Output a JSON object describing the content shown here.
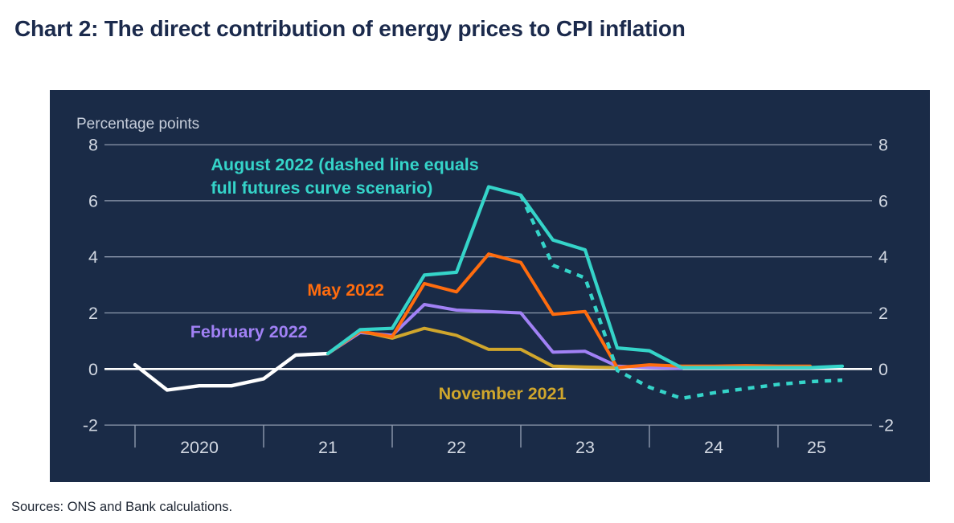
{
  "page": {
    "title": "Chart 2: The direct contribution of energy prices to CPI inflation",
    "sources": "Sources: ONS and Bank calculations."
  },
  "chart_data": {
    "type": "line",
    "title": "Chart 2: The direct contribution of energy prices to CPI inflation",
    "ylabel": "Percentage points",
    "xlabel": "",
    "ylim": [
      -2,
      8
    ],
    "yticks": [
      8,
      6,
      4,
      2,
      0,
      -2
    ],
    "y_axis_labels_on_both_sides": true,
    "grid": true,
    "legend_position": "inline-annotations",
    "year_ticks": [
      2020,
      2021,
      2022,
      2023,
      2024,
      2025
    ],
    "xtick_labels": [
      {
        "label": "2020",
        "year": 2020.5
      },
      {
        "label": "21",
        "year": 2021.5
      },
      {
        "label": "22",
        "year": 2022.5
      },
      {
        "label": "23",
        "year": 2023.5
      },
      {
        "label": "24",
        "year": 2024.5
      },
      {
        "label": "25",
        "year": 2025.3
      }
    ],
    "series": [
      {
        "id": "actual",
        "label": "",
        "color": "#ffffff",
        "style": "solid",
        "width": 4.4,
        "points": [
          [
            2020.0,
            0.15
          ],
          [
            2020.25,
            -0.75
          ],
          [
            2020.5,
            -0.6
          ],
          [
            2020.75,
            -0.6
          ],
          [
            2021.0,
            -0.35
          ],
          [
            2021.25,
            0.5
          ],
          [
            2021.5,
            0.55
          ]
        ]
      },
      {
        "id": "february-2022",
        "label": "February 2022",
        "color": "#a181f5",
        "style": "solid",
        "width": 4,
        "points": [
          [
            2021.5,
            0.55
          ],
          [
            2021.75,
            1.3
          ],
          [
            2022.0,
            1.2
          ],
          [
            2022.25,
            2.3
          ],
          [
            2022.5,
            2.1
          ],
          [
            2022.75,
            2.05
          ],
          [
            2023.0,
            2.0
          ],
          [
            2023.25,
            0.6
          ],
          [
            2023.5,
            0.63
          ],
          [
            2023.75,
            0.1
          ],
          [
            2024.0,
            0.05
          ],
          [
            2024.25,
            0.02
          ]
        ]
      },
      {
        "id": "november-2021",
        "label": "November 2021",
        "color": "#d0a62c",
        "style": "solid",
        "width": 4,
        "points": [
          [
            2021.5,
            0.55
          ],
          [
            2021.75,
            1.35
          ],
          [
            2022.0,
            1.1
          ],
          [
            2022.25,
            1.45
          ],
          [
            2022.5,
            1.2
          ],
          [
            2022.75,
            0.7
          ],
          [
            2023.0,
            0.7
          ],
          [
            2023.25,
            0.1
          ],
          [
            2023.5,
            0.07
          ],
          [
            2023.75,
            0.05
          ]
        ]
      },
      {
        "id": "may-2022",
        "label": "May 2022",
        "color": "#ff6c0e",
        "style": "solid",
        "width": 4,
        "points": [
          [
            2021.5,
            0.55
          ],
          [
            2021.75,
            1.35
          ],
          [
            2022.0,
            1.15
          ],
          [
            2022.25,
            3.05
          ],
          [
            2022.5,
            2.75
          ],
          [
            2022.75,
            4.1
          ],
          [
            2023.0,
            3.8
          ],
          [
            2023.25,
            1.95
          ],
          [
            2023.5,
            2.05
          ],
          [
            2023.75,
            0.05
          ],
          [
            2024.0,
            0.15
          ],
          [
            2024.25,
            0.1
          ],
          [
            2024.5,
            0.1
          ],
          [
            2024.75,
            0.12
          ],
          [
            2025.0,
            0.1
          ],
          [
            2025.25,
            0.1
          ]
        ]
      },
      {
        "id": "august-2022",
        "label": "August 2022",
        "color": "#35d4c9",
        "style": "solid",
        "width": 4.2,
        "points": [
          [
            2021.5,
            0.55
          ],
          [
            2021.75,
            1.4
          ],
          [
            2022.0,
            1.45
          ],
          [
            2022.25,
            3.35
          ],
          [
            2022.5,
            3.45
          ],
          [
            2022.75,
            6.5
          ],
          [
            2023.0,
            6.2
          ],
          [
            2023.25,
            4.6
          ],
          [
            2023.5,
            4.25
          ],
          [
            2023.75,
            0.75
          ],
          [
            2024.0,
            0.65
          ],
          [
            2024.25,
            0.05
          ],
          [
            2024.5,
            0.05
          ],
          [
            2024.75,
            0.05
          ],
          [
            2025.0,
            0.05
          ],
          [
            2025.25,
            0.05
          ],
          [
            2025.5,
            0.1
          ]
        ]
      },
      {
        "id": "august-2022-futures",
        "label": "August 2022 full futures curve scenario",
        "color": "#35d4c9",
        "style": "dashed",
        "width": 4.4,
        "points": [
          [
            2023.0,
            6.2
          ],
          [
            2023.25,
            3.7
          ],
          [
            2023.5,
            3.25
          ],
          [
            2023.75,
            -0.05
          ],
          [
            2024.0,
            -0.65
          ],
          [
            2024.25,
            -1.05
          ],
          [
            2024.5,
            -0.85
          ],
          [
            2024.75,
            -0.7
          ],
          [
            2025.0,
            -0.55
          ],
          [
            2025.25,
            -0.45
          ],
          [
            2025.5,
            -0.4
          ]
        ]
      }
    ],
    "annotations": [
      {
        "id": "august-2022-label-line1",
        "text": "August 2022 (dashed line equals",
        "color": "#35d4c9",
        "year": 2020.59,
        "value": 7.09
      },
      {
        "id": "august-2022-label-line2",
        "text": "full futures curve scenario)",
        "color": "#35d4c9",
        "year": 2020.59,
        "value": 6.26
      },
      {
        "id": "may-2022-label",
        "text": "May 2022",
        "color": "#ff6c0e",
        "year": 2021.34,
        "value": 2.62
      },
      {
        "id": "february-2022-label",
        "text": "February 2022",
        "color": "#a181f5",
        "year": 2020.43,
        "value": 1.13
      },
      {
        "id": "november-2021-label",
        "text": "November 2021",
        "color": "#d0a62c",
        "year": 2022.36,
        "value": -1.08
      }
    ],
    "colors": {
      "panel_background": "#1a2b47",
      "gridline": "#8e9aae",
      "zero_line": "#ffffff",
      "axis_text": "#d2d8e2",
      "title_text": "#1b2a4c"
    }
  }
}
